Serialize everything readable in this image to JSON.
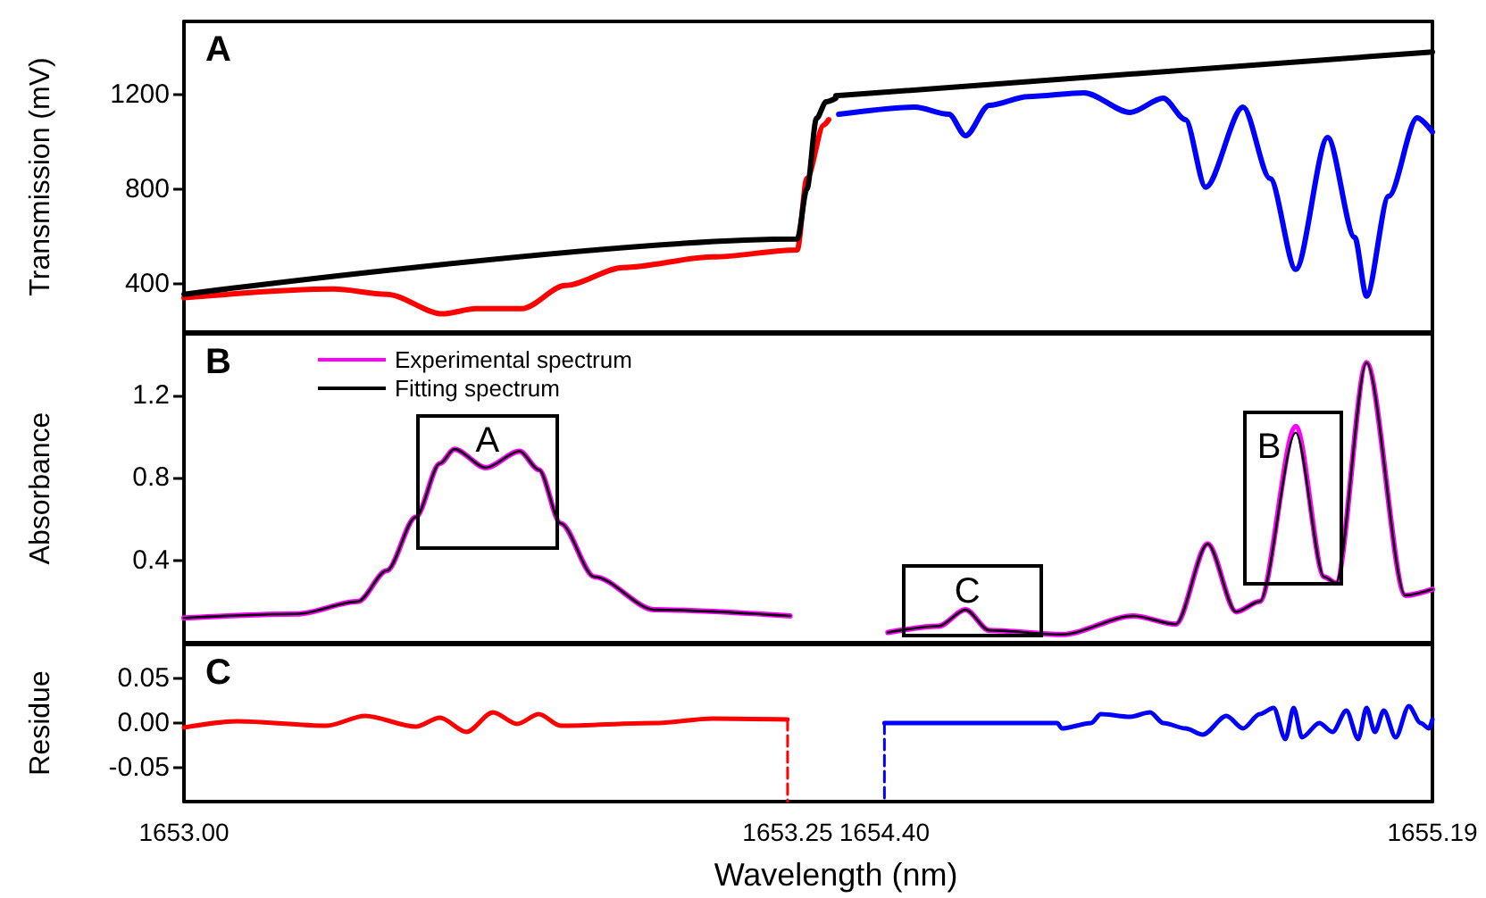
{
  "chart_data": [
    {
      "type": "line",
      "ylabel": "Transmission (mV)",
      "annotations": [
        "A"
      ],
      "xlim": [
        1653.0,
        1653.27
      ],
      "ylim": [
        195,
        1510
      ],
      "yticks": [
        400,
        800,
        1200
      ],
      "tick_labels": "y",
      "series": [
        {
          "color": "#ff0000",
          "x": [
            1653.0,
            1653.062,
            1653.084,
            1653.107,
            1653.121,
            1653.14,
            1653.158,
            1653.182,
            1653.219,
            1653.254,
            1653.258,
            1653.265,
            1653.267
          ],
          "values": [
            340,
            377,
            355,
            272,
            294,
            294,
            392,
            468,
            513,
            543,
            845,
            1072,
            1094
          ]
        },
        {
          "color": "#000000",
          "x": [
            1653.0,
            1653.254,
            1653.258,
            1653.262,
            1653.266,
            1653.27
          ],
          "values": [
            355,
            589,
            800,
            1100,
            1170,
            1185
          ]
        }
      ]
    },
    {
      "type": "line",
      "xlim": [
        1654.33,
        1655.19
      ],
      "ylim": [
        195,
        1510
      ],
      "tick_labels": false,
      "series": [
        {
          "color": "#0000ff",
          "x": [
            1654.334,
            1654.444,
            1654.493,
            1654.517,
            1654.551,
            1654.607,
            1654.688,
            1654.754,
            1654.802,
            1654.834,
            1654.863,
            1654.917,
            1654.956,
            1654.993,
            1655.039,
            1655.078,
            1655.095,
            1655.127,
            1655.168,
            1655.19
          ],
          "values": [
            1117,
            1147,
            1117,
            1026,
            1155,
            1192,
            1208,
            1125,
            1185,
            1094,
            808,
            1147,
            845,
            460,
            1019,
            596,
            347,
            770,
            1102,
            1042
          ]
        },
        {
          "color": "#000000",
          "x": [
            1654.33,
            1655.19
          ],
          "values": [
            1195,
            1381
          ]
        }
      ]
    },
    {
      "type": "line",
      "ylabel": "Absorbance",
      "annotations": [
        "B",
        {
          "text": "A",
          "x": 1653.125,
          "y": 0.85
        }
      ],
      "xlim": [
        1653.0,
        1653.27
      ],
      "ylim": [
        0,
        1.5
      ],
      "yticks": [
        0.4,
        0.8,
        1.2
      ],
      "tick_labels": "y",
      "legend": "top left",
      "x": [
        1653.0,
        1653.047,
        1653.072,
        1653.084,
        1653.096,
        1653.106,
        1653.112,
        1653.125,
        1653.139,
        1653.147,
        1653.156,
        1653.17,
        1653.195,
        1653.251
      ],
      "series": [
        {
          "name": "Experimental spectrum",
          "color": "#ff00ff",
          "values": [
            0.12,
            0.14,
            0.2,
            0.35,
            0.61,
            0.87,
            0.94,
            0.85,
            0.93,
            0.84,
            0.58,
            0.32,
            0.16,
            0.13
          ]
        },
        {
          "name": "Fitting spectrum",
          "color": "#000000",
          "values": [
            0.12,
            0.14,
            0.2,
            0.35,
            0.61,
            0.87,
            0.94,
            0.85,
            0.93,
            0.84,
            0.58,
            0.32,
            0.16,
            0.13
          ]
        }
      ]
    },
    {
      "type": "line",
      "annotations": [
        {
          "text": "C",
          "x": 1654.517,
          "y": 0.16
        },
        {
          "text": "B",
          "x": 1654.993,
          "y": 1.02
        }
      ],
      "xlim": [
        1654.33,
        1655.19
      ],
      "ylim": [
        0,
        1.5
      ],
      "tick_labels": false,
      "x": [
        1654.405,
        1654.478,
        1654.517,
        1654.551,
        1654.656,
        1654.759,
        1654.82,
        1654.866,
        1654.907,
        1654.941,
        1654.993,
        1655.034,
        1655.051,
        1655.095,
        1655.151,
        1655.19
      ],
      "series": [
        {
          "color": "#ff00ff",
          "values": [
            0.05,
            0.08,
            0.16,
            0.06,
            0.04,
            0.13,
            0.09,
            0.48,
            0.15,
            0.2,
            1.05,
            0.32,
            0.29,
            1.36,
            0.23,
            0.26
          ]
        },
        {
          "color": "#000000",
          "values": [
            0.05,
            0.08,
            0.16,
            0.06,
            0.04,
            0.13,
            0.09,
            0.48,
            0.15,
            0.2,
            1.02,
            0.32,
            0.29,
            1.36,
            0.23,
            0.26
          ]
        }
      ]
    },
    {
      "type": "line",
      "ylabel": "Residue",
      "xlabel": "Wavelength (nm)",
      "annotations": [
        "C"
      ],
      "xlim": [
        1653.0,
        1653.27
      ],
      "ylim": [
        -0.088,
        0.088
      ],
      "xticks": [
        {
          "value": 1653.0,
          "label": "1653.00"
        },
        1653.25
      ],
      "yticks": [
        0.05,
        {
          "value": 0,
          "label": "0.00"
        },
        -0.05
      ],
      "series": [
        {
          "color": "#ff0000",
          "x": [
            1653.0,
            1653.022,
            1653.059,
            1653.075,
            1653.096,
            1653.106,
            1653.117,
            1653.128,
            1653.138,
            1653.147,
            1653.156,
            1653.195,
            1653.219,
            1653.25
          ],
          "values": [
            -0.005,
            0.002,
            -0.003,
            0.008,
            -0.004,
            0.006,
            -0.01,
            0.012,
            -0.001,
            0.01,
            -0.003,
            0.0,
            0.005,
            0.004
          ]
        },
        {
          "color": "#ff0000",
          "line_style": "dashed",
          "x": [
            1653.25,
            1653.25
          ],
          "values": [
            0.004,
            -0.088
          ]
        }
      ]
    },
    {
      "type": "line",
      "xlim": [
        1654.33,
        1655.19
      ],
      "ylim": [
        -0.088,
        0.088
      ],
      "xticks": [
        {
          "value": 1654.4,
          "label": "1654.40"
        },
        1655.19
      ],
      "tick_labels": "x",
      "series": [
        {
          "color": "#0000ff",
          "x": [
            1654.4,
            1654.649,
            1654.656,
            1654.698,
            1654.712,
            1654.754,
            1654.783,
            1654.802,
            1654.834,
            1654.859,
            1654.893,
            1654.917,
            1654.941,
            1654.961,
            1654.978,
            1654.99,
            1655.002,
            1655.027,
            1655.046,
            1655.066,
            1655.083,
            1655.095,
            1655.107,
            1655.12,
            1655.137,
            1655.156,
            1655.173,
            1655.185,
            1655.19
          ],
          "values": [
            0.0,
            0.0,
            -0.006,
            0.0,
            0.01,
            0.007,
            0.012,
            0.0,
            -0.006,
            -0.013,
            0.008,
            -0.006,
            0.01,
            0.017,
            -0.018,
            0.017,
            -0.016,
            0.0,
            -0.01,
            0.014,
            -0.018,
            0.017,
            -0.01,
            0.014,
            -0.016,
            0.019,
            0.0,
            -0.006,
            0.004
          ]
        },
        {
          "color": "#0000ff",
          "line_style": "dashed",
          "x": [
            1654.4,
            1654.4
          ],
          "values": [
            0.0,
            -0.088
          ]
        }
      ]
    }
  ]
}
